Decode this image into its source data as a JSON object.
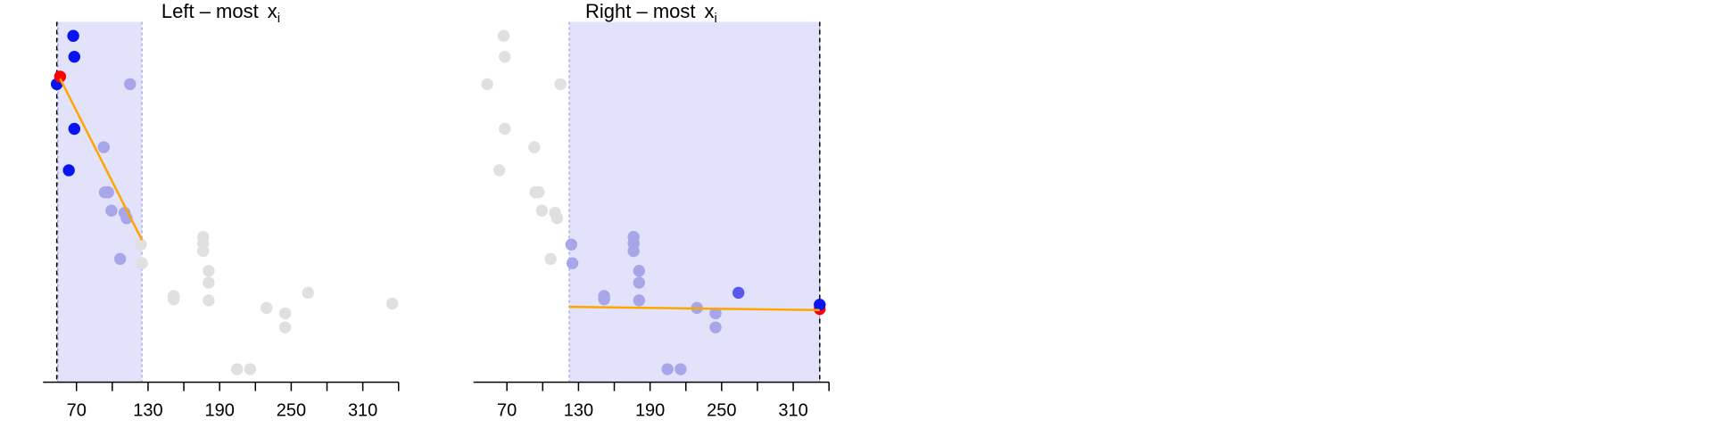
{
  "chart_data": [
    {
      "type": "scatter",
      "title": "Left – most",
      "title_math": "x",
      "title_sub": "i",
      "xlim": [
        42,
        340
      ],
      "ylim": [
        0,
        100
      ],
      "xticks": [
        70,
        130,
        190,
        250,
        310
      ],
      "xminor_ticks": [
        100,
        160,
        220,
        280,
        340
      ],
      "window": [
        54.4,
        124.9
      ],
      "window_color": "#e2e2fb",
      "marker_line": 53.5,
      "fit_line": {
        "x": [
          56.3,
          124.9
        ],
        "y": [
          84.2,
          39.4
        ],
        "color": "#ffa500"
      },
      "series": [
        {
          "color": "#e0e0e0",
          "x": [
            124.0,
            124.9,
            151.5,
            151.5,
            176.2,
            176.2,
            176.2,
            180.8,
            180.8,
            180.8,
            229.3,
            244.9,
            244.9,
            264.1,
            204.6,
            215.6,
            334.7
          ],
          "y": [
            38.2,
            33.0,
            23.9,
            23.0,
            40.3,
            38.5,
            36.4,
            30.9,
            27.6,
            22.7,
            20.6,
            19.1,
            15.2,
            24.8,
            3.6,
            3.6,
            21.8
          ]
        },
        {
          "color": "#a6a6e8",
          "x": [
            114.9,
            92.9,
            93.8,
            96.6,
            99.3,
            110.3,
            112.1,
            106.6
          ],
          "y": [
            82.7,
            65.2,
            52.7,
            52.7,
            47.6,
            47.0,
            45.5,
            34.2
          ]
        },
        {
          "color": "#0a14f0",
          "x": [
            67.3,
            68.2,
            53.5,
            68.2,
            63.6
          ],
          "y": [
            96.1,
            90.3,
            82.7,
            70.3,
            58.8
          ]
        },
        {
          "color": "#ff0000",
          "x": [
            56.3
          ],
          "y": [
            84.8
          ]
        }
      ]
    },
    {
      "type": "scatter",
      "title": "Right – most",
      "title_math": "x",
      "title_sub": "i",
      "xlim": [
        42,
        340
      ],
      "ylim": [
        0,
        100
      ],
      "xticks": [
        70,
        130,
        190,
        250,
        310
      ],
      "xminor_ticks": [
        100,
        160,
        220,
        280,
        340
      ],
      "window": [
        122.2,
        332.2
      ],
      "window_color": "#e2e2fb",
      "marker_line": 332.2,
      "fit_line": {
        "x": [
          122.2,
          332.2
        ],
        "y": [
          20.9,
          20.0
        ],
        "color": "#ffa500"
      },
      "series": [
        {
          "color": "#e0e0e0",
          "x": [
            67.3,
            68.2,
            53.5,
            68.2,
            63.6,
            114.9,
            92.9,
            93.8,
            96.6,
            99.3,
            110.3,
            112.1,
            106.6
          ],
          "y": [
            96.1,
            90.3,
            82.7,
            70.3,
            58.8,
            82.7,
            65.2,
            52.7,
            52.7,
            47.6,
            47.0,
            45.5,
            34.2
          ]
        },
        {
          "color": "#a6a6e8",
          "x": [
            124.0,
            124.9,
            151.5,
            151.5,
            176.2,
            176.2,
            176.2,
            180.8,
            180.8,
            180.8,
            229.3,
            244.9,
            244.9,
            204.6,
            215.6
          ],
          "y": [
            38.2,
            33.0,
            23.9,
            23.0,
            40.3,
            38.5,
            36.4,
            30.9,
            27.6,
            22.7,
            20.6,
            19.1,
            15.2,
            3.6,
            3.6
          ]
        },
        {
          "color": "#5858ec",
          "x": [
            264.1
          ],
          "y": [
            24.8
          ]
        },
        {
          "color": "#ff0000",
          "x": [
            332.2
          ],
          "y": [
            20.3
          ]
        },
        {
          "color": "#0a14f0",
          "x": [
            332.2
          ],
          "y": [
            21.5
          ]
        }
      ]
    }
  ]
}
